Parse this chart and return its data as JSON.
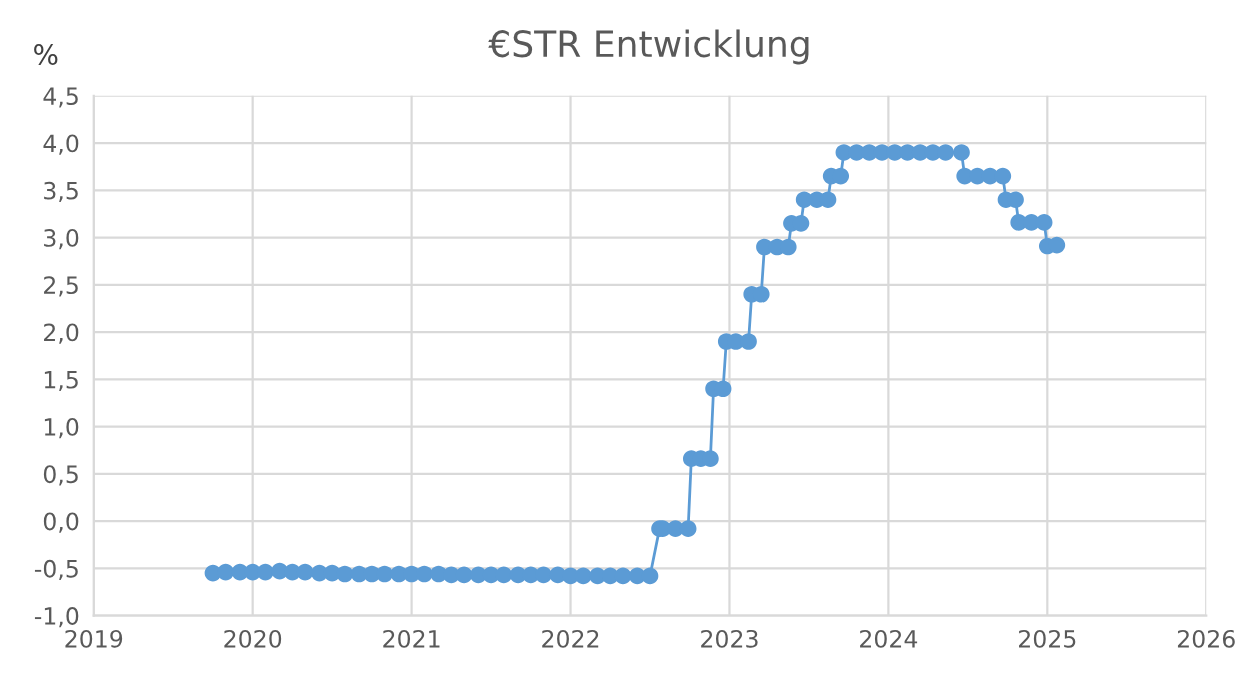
{
  "chart_data": {
    "type": "line",
    "title": "€STR Entwicklung",
    "ylabel": "%",
    "x": [
      2019.75,
      2019.83,
      2019.92,
      2020.0,
      2020.08,
      2020.17,
      2020.25,
      2020.33,
      2020.42,
      2020.5,
      2020.58,
      2020.67,
      2020.75,
      2020.83,
      2020.92,
      2021.0,
      2021.08,
      2021.17,
      2021.25,
      2021.33,
      2021.42,
      2021.5,
      2021.58,
      2021.67,
      2021.75,
      2021.83,
      2021.92,
      2022.0,
      2022.08,
      2022.17,
      2022.25,
      2022.33,
      2022.42,
      2022.5,
      2022.56,
      2022.58,
      2022.66,
      2022.74,
      2022.76,
      2022.82,
      2022.88,
      2022.9,
      2022.96,
      2022.98,
      2023.04,
      2023.12,
      2023.14,
      2023.2,
      2023.22,
      2023.3,
      2023.37,
      2023.39,
      2023.45,
      2023.47,
      2023.55,
      2023.62,
      2023.64,
      2023.7,
      2023.72,
      2023.8,
      2023.88,
      2023.96,
      2024.04,
      2024.12,
      2024.2,
      2024.28,
      2024.36,
      2024.46,
      2024.48,
      2024.56,
      2024.64,
      2024.72,
      2024.74,
      2024.8,
      2024.82,
      2024.9,
      2024.98,
      2025.0,
      2025.06
    ],
    "series": [
      {
        "color": "#5b9bd5",
        "values": [
          -0.55,
          -0.54,
          -0.54,
          -0.54,
          -0.54,
          -0.53,
          -0.54,
          -0.54,
          -0.55,
          -0.55,
          -0.56,
          -0.56,
          -0.56,
          -0.56,
          -0.56,
          -0.56,
          -0.56,
          -0.56,
          -0.57,
          -0.57,
          -0.57,
          -0.57,
          -0.57,
          -0.57,
          -0.57,
          -0.57,
          -0.57,
          -0.58,
          -0.58,
          -0.58,
          -0.58,
          -0.58,
          -0.58,
          -0.58,
          -0.08,
          -0.08,
          -0.08,
          -0.08,
          0.66,
          0.66,
          0.66,
          1.4,
          1.4,
          1.9,
          1.9,
          1.9,
          2.4,
          2.4,
          2.9,
          2.9,
          2.9,
          3.15,
          3.15,
          3.4,
          3.4,
          3.4,
          3.65,
          3.65,
          3.9,
          3.9,
          3.9,
          3.9,
          3.9,
          3.9,
          3.9,
          3.9,
          3.9,
          3.9,
          3.65,
          3.65,
          3.65,
          3.65,
          3.4,
          3.4,
          3.16,
          3.16,
          3.16,
          2.91,
          2.92
        ]
      }
    ],
    "xlim": [
      2019,
      2026
    ],
    "xticks": [
      2019,
      2020,
      2021,
      2022,
      2023,
      2024,
      2025,
      2026
    ],
    "ylim": [
      -1.0,
      4.5
    ],
    "yticks": [
      {
        "value": -1.0,
        "label": "-1,0"
      },
      {
        "value": -0.5,
        "label": "-0,5"
      },
      {
        "value": 0.0,
        "label": "0,0"
      },
      {
        "value": 0.5,
        "label": "0,5"
      },
      {
        "value": 1.0,
        "label": "1,0"
      },
      {
        "value": 1.5,
        "label": "1,5"
      },
      {
        "value": 2.0,
        "label": "2,0"
      },
      {
        "value": 2.5,
        "label": "2,5"
      },
      {
        "value": 3.0,
        "label": "3,0"
      },
      {
        "value": 3.5,
        "label": "3,5"
      },
      {
        "value": 4.0,
        "label": "4,0"
      },
      {
        "value": 4.5,
        "label": "4,5"
      }
    ],
    "grid": true,
    "marker": "circle",
    "line_style": "solid"
  }
}
